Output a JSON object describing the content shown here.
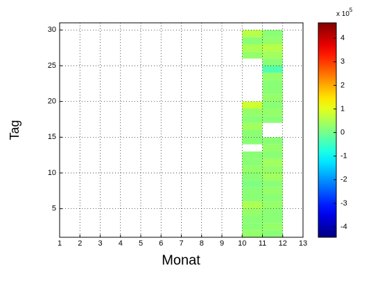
{
  "chart_data": {
    "type": "heatmap",
    "xlabel": "Monat",
    "ylabel": "Tag",
    "x": [
      10,
      11,
      12
    ],
    "y": [
      1,
      2,
      3,
      4,
      5,
      6,
      7,
      8,
      9,
      10,
      11,
      12,
      13,
      14,
      15,
      16,
      17,
      18,
      19,
      20,
      21,
      22,
      23,
      24,
      25,
      26,
      27,
      28,
      29,
      30
    ],
    "values": [
      [
        0.3,
        0.2
      ],
      [
        0.2,
        0.3
      ],
      [
        0.2,
        0.2
      ],
      [
        0.3,
        0.2
      ],
      [
        0.5,
        0.3
      ],
      [
        0.2,
        0.2
      ],
      [
        0.2,
        0.3
      ],
      [
        0.1,
        0.2
      ],
      [
        0.2,
        0.4
      ],
      [
        0.3,
        0.3
      ],
      [
        0.2,
        0.4
      ],
      [
        0.2,
        0.2
      ],
      [
        null,
        0.3
      ],
      [
        0.2,
        0.2
      ],
      [
        0.2,
        null
      ],
      [
        0.4,
        null
      ],
      [
        0.2,
        0.2
      ],
      [
        0.3,
        0.3
      ],
      [
        0.8,
        0.2
      ],
      [
        null,
        0.3
      ],
      [
        null,
        0.2
      ],
      [
        null,
        0.2
      ],
      [
        null,
        0.3
      ],
      [
        null,
        -0.3
      ],
      [
        null,
        0.2
      ],
      [
        0.3,
        0.4
      ],
      [
        0.5,
        0.6
      ],
      [
        0.2,
        0.3
      ],
      [
        0.6,
        0.2
      ]
    ],
    "xlim": [
      1,
      13
    ],
    "xticks": [
      1,
      2,
      3,
      4,
      5,
      6,
      7,
      8,
      9,
      10,
      11,
      12,
      13
    ],
    "ylim": [
      1,
      31
    ],
    "yticks": [
      5,
      10,
      15,
      20,
      25,
      30
    ],
    "grid": true,
    "colormap": "jet",
    "clim": [
      -4.44,
      4.65
    ],
    "cticks": [
      -4,
      -3,
      -2,
      -1,
      0,
      1,
      2,
      3,
      4
    ],
    "cexponent_base": "x 10",
    "cexponent": "5"
  }
}
